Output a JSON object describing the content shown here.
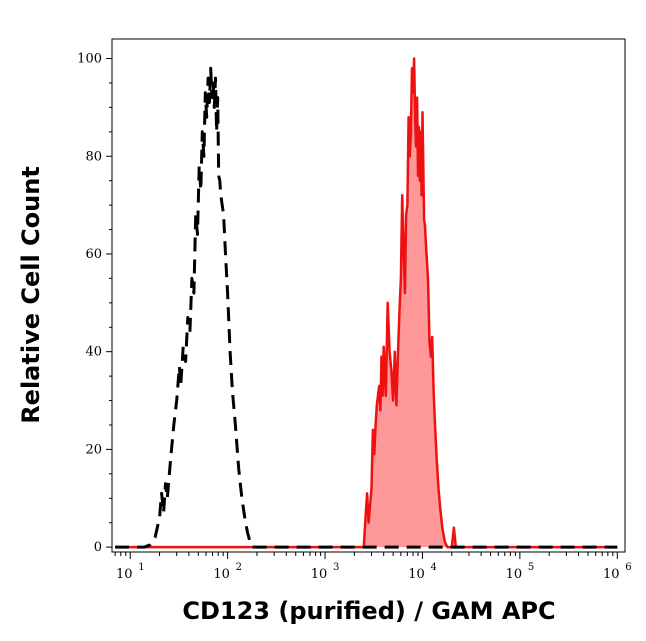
{
  "chart_data": {
    "type": "area",
    "title": "",
    "xlabel": "CD123 (purified) / GAM APC",
    "ylabel": "Relative Cell Count",
    "x_scale": "log",
    "xlim": [
      6.5,
      1200000
    ],
    "ylim": [
      -1,
      104
    ],
    "x_ticks": [
      {
        "value": 10,
        "base": "10",
        "exp": "1"
      },
      {
        "value": 100,
        "base": "10",
        "exp": "2"
      },
      {
        "value": 1000,
        "base": "10",
        "exp": "3"
      },
      {
        "value": 10000,
        "base": "10",
        "exp": "4"
      },
      {
        "value": 100000,
        "base": "10",
        "exp": "5"
      },
      {
        "value": 1000000,
        "base": "10",
        "exp": "6"
      }
    ],
    "y_ticks": [
      0,
      20,
      40,
      60,
      80,
      100
    ],
    "grid": false,
    "legend": "none",
    "series": [
      {
        "style": "dashed-outline",
        "color": "#000000",
        "points": [
          [
            7,
            0
          ],
          [
            14,
            0
          ],
          [
            16,
            0.5
          ],
          [
            18,
            2
          ],
          [
            20,
            6
          ],
          [
            21,
            11
          ],
          [
            22,
            7
          ],
          [
            23,
            13
          ],
          [
            24,
            10
          ],
          [
            26,
            18
          ],
          [
            28,
            25
          ],
          [
            30,
            30
          ],
          [
            32,
            37
          ],
          [
            33,
            33
          ],
          [
            35,
            41
          ],
          [
            37,
            38
          ],
          [
            39,
            47
          ],
          [
            41,
            44
          ],
          [
            43,
            55
          ],
          [
            45,
            52
          ],
          [
            47,
            68
          ],
          [
            49,
            64
          ],
          [
            51,
            78
          ],
          [
            53,
            73
          ],
          [
            55,
            85
          ],
          [
            57,
            80
          ],
          [
            59,
            93
          ],
          [
            61,
            88
          ],
          [
            63,
            96
          ],
          [
            65,
            91
          ],
          [
            67,
            98
          ],
          [
            69,
            92
          ],
          [
            71,
            95
          ],
          [
            73,
            90
          ],
          [
            75,
            96
          ],
          [
            77,
            85
          ],
          [
            79,
            92
          ],
          [
            81,
            76
          ],
          [
            83,
            75
          ],
          [
            85,
            72
          ],
          [
            88,
            70
          ],
          [
            91,
            68
          ],
          [
            95,
            60
          ],
          [
            100,
            52
          ],
          [
            106,
            40
          ],
          [
            112,
            32
          ],
          [
            120,
            25
          ],
          [
            130,
            16
          ],
          [
            140,
            10
          ],
          [
            150,
            6
          ],
          [
            160,
            3
          ],
          [
            170,
            1
          ],
          [
            180,
            0
          ],
          [
            220,
            0
          ],
          [
            1000000,
            0
          ]
        ]
      },
      {
        "style": "filled",
        "color": "#ee1111",
        "fill": "#ff9999",
        "points": [
          [
            7,
            0
          ],
          [
            2500,
            0
          ],
          [
            2600,
            6
          ],
          [
            2700,
            11
          ],
          [
            2800,
            5
          ],
          [
            3000,
            12
          ],
          [
            3100,
            24
          ],
          [
            3200,
            19
          ],
          [
            3300,
            25
          ],
          [
            3400,
            29
          ],
          [
            3600,
            33
          ],
          [
            3700,
            28
          ],
          [
            3800,
            39
          ],
          [
            3900,
            31
          ],
          [
            4000,
            41
          ],
          [
            4200,
            31
          ],
          [
            4400,
            50
          ],
          [
            4600,
            40
          ],
          [
            4800,
            36
          ],
          [
            5000,
            30
          ],
          [
            5200,
            40
          ],
          [
            5400,
            29
          ],
          [
            5600,
            39
          ],
          [
            5800,
            48
          ],
          [
            6000,
            55
          ],
          [
            6200,
            72
          ],
          [
            6400,
            61
          ],
          [
            6600,
            52
          ],
          [
            6800,
            68
          ],
          [
            7000,
            70
          ],
          [
            7200,
            88
          ],
          [
            7400,
            80
          ],
          [
            7600,
            85
          ],
          [
            7800,
            98
          ],
          [
            8000,
            93
          ],
          [
            8200,
            100
          ],
          [
            8400,
            88
          ],
          [
            8600,
            82
          ],
          [
            8800,
            92
          ],
          [
            9000,
            76
          ],
          [
            9200,
            86
          ],
          [
            9400,
            75
          ],
          [
            9600,
            85
          ],
          [
            9800,
            72
          ],
          [
            10000,
            89
          ],
          [
            10200,
            78
          ],
          [
            10400,
            67
          ],
          [
            10600,
            66
          ],
          [
            11000,
            60
          ],
          [
            11400,
            55
          ],
          [
            11800,
            42
          ],
          [
            12200,
            39
          ],
          [
            12600,
            43
          ],
          [
            13000,
            32
          ],
          [
            13400,
            26
          ],
          [
            14000,
            18
          ],
          [
            14600,
            12
          ],
          [
            15200,
            8
          ],
          [
            16000,
            4
          ],
          [
            17000,
            1
          ],
          [
            18000,
            0
          ],
          [
            20000,
            0
          ],
          [
            21000,
            4
          ],
          [
            22000,
            0
          ],
          [
            1000000,
            0
          ]
        ]
      }
    ]
  }
}
